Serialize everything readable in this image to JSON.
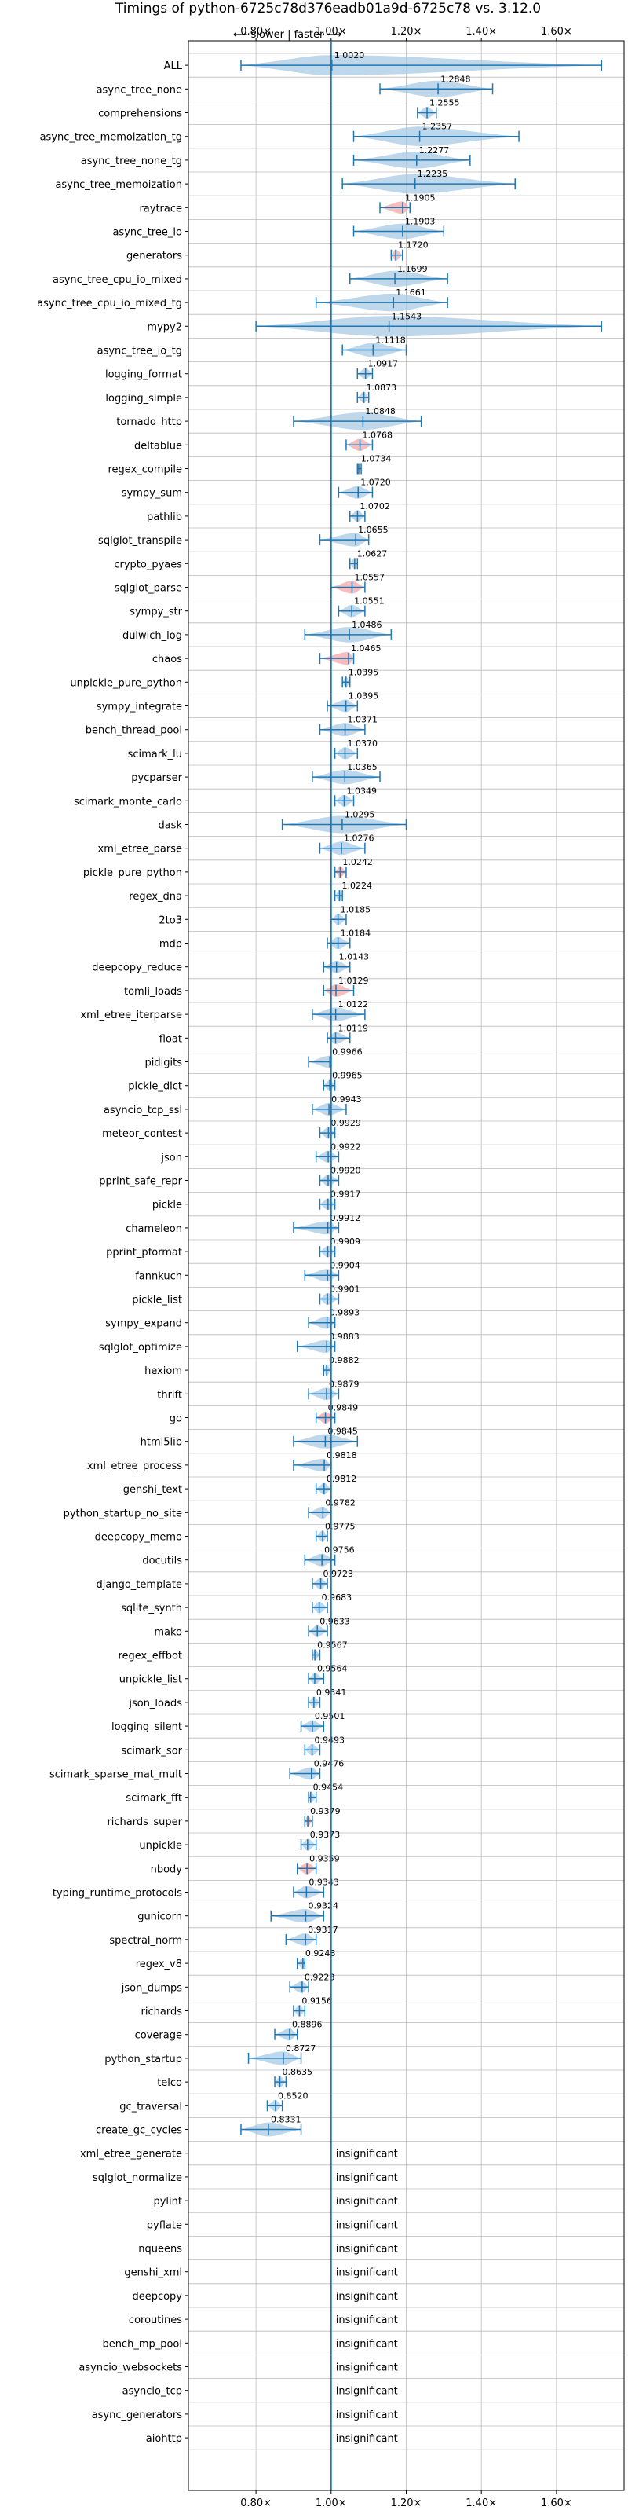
{
  "chart_data": {
    "type": "violin",
    "title": "Timings of python-6725c78d376eadb01a9d-6725c78 vs. 3.12.0",
    "xlabel": "",
    "ylabel": "",
    "direction_label": "⟵ slower  |  faster ⟶",
    "x_ticks": [
      "0.80×",
      "1.00×",
      "1.20×",
      "1.40×",
      "1.60×"
    ],
    "x_tick_values": [
      0.8,
      1.0,
      1.2,
      1.4,
      1.6
    ],
    "xlim": [
      0.62,
      1.78
    ],
    "grid": true,
    "colors": {
      "faster": "#a9c9e4",
      "slower": "#f4a7a7",
      "line": "#1f77b4",
      "grid": "#bbbbbb"
    },
    "insignificant_label": "insignificant",
    "benchmarks": [
      {
        "name": "ALL",
        "value": 1.002,
        "label": "1.0020",
        "lo": 0.76,
        "hi": 1.72,
        "slower": false,
        "sig": true
      },
      {
        "name": "async_tree_none",
        "value": 1.2848,
        "label": "1.2848",
        "lo": 1.13,
        "hi": 1.43,
        "slower": false,
        "sig": true
      },
      {
        "name": "comprehensions",
        "value": 1.2555,
        "label": "1.2555",
        "lo": 1.23,
        "hi": 1.28,
        "slower": false,
        "sig": true
      },
      {
        "name": "async_tree_memoization_tg",
        "value": 1.2357,
        "label": "1.2357",
        "lo": 1.06,
        "hi": 1.5,
        "slower": false,
        "sig": true
      },
      {
        "name": "async_tree_none_tg",
        "value": 1.2277,
        "label": "1.2277",
        "lo": 1.06,
        "hi": 1.37,
        "slower": false,
        "sig": true
      },
      {
        "name": "async_tree_memoization",
        "value": 1.2235,
        "label": "1.2235",
        "lo": 1.03,
        "hi": 1.49,
        "slower": false,
        "sig": true
      },
      {
        "name": "raytrace",
        "value": 1.1905,
        "label": "1.1905",
        "lo": 1.13,
        "hi": 1.21,
        "slower": true,
        "sig": true
      },
      {
        "name": "async_tree_io",
        "value": 1.1903,
        "label": "1.1903",
        "lo": 1.06,
        "hi": 1.3,
        "slower": false,
        "sig": true
      },
      {
        "name": "generators",
        "value": 1.172,
        "label": "1.1720",
        "lo": 1.16,
        "hi": 1.19,
        "slower": true,
        "sig": true
      },
      {
        "name": "async_tree_cpu_io_mixed",
        "value": 1.1699,
        "label": "1.1699",
        "lo": 1.05,
        "hi": 1.31,
        "slower": false,
        "sig": true
      },
      {
        "name": "async_tree_cpu_io_mixed_tg",
        "value": 1.1661,
        "label": "1.1661",
        "lo": 0.96,
        "hi": 1.31,
        "slower": false,
        "sig": true
      },
      {
        "name": "mypy2",
        "value": 1.1543,
        "label": "1.1543",
        "lo": 0.8,
        "hi": 1.72,
        "slower": false,
        "sig": true
      },
      {
        "name": "async_tree_io_tg",
        "value": 1.1118,
        "label": "1.1118",
        "lo": 1.03,
        "hi": 1.2,
        "slower": false,
        "sig": true
      },
      {
        "name": "logging_format",
        "value": 1.0917,
        "label": "1.0917",
        "lo": 1.07,
        "hi": 1.11,
        "slower": false,
        "sig": true
      },
      {
        "name": "logging_simple",
        "value": 1.0873,
        "label": "1.0873",
        "lo": 1.07,
        "hi": 1.1,
        "slower": false,
        "sig": true
      },
      {
        "name": "tornado_http",
        "value": 1.0848,
        "label": "1.0848",
        "lo": 0.9,
        "hi": 1.24,
        "slower": false,
        "sig": true
      },
      {
        "name": "deltablue",
        "value": 1.0768,
        "label": "1.0768",
        "lo": 1.04,
        "hi": 1.11,
        "slower": true,
        "sig": true
      },
      {
        "name": "regex_compile",
        "value": 1.0734,
        "label": "1.0734",
        "lo": 1.07,
        "hi": 1.08,
        "slower": false,
        "sig": true
      },
      {
        "name": "sympy_sum",
        "value": 1.072,
        "label": "1.0720",
        "lo": 1.02,
        "hi": 1.11,
        "slower": false,
        "sig": true
      },
      {
        "name": "pathlib",
        "value": 1.0702,
        "label": "1.0702",
        "lo": 1.05,
        "hi": 1.09,
        "slower": false,
        "sig": true
      },
      {
        "name": "sqlglot_transpile",
        "value": 1.0655,
        "label": "1.0655",
        "lo": 0.97,
        "hi": 1.1,
        "slower": false,
        "sig": true
      },
      {
        "name": "crypto_pyaes",
        "value": 1.0627,
        "label": "1.0627",
        "lo": 1.05,
        "hi": 1.07,
        "slower": false,
        "sig": true
      },
      {
        "name": "sqlglot_parse",
        "value": 1.0557,
        "label": "1.0557",
        "lo": 1.0,
        "hi": 1.09,
        "slower": true,
        "sig": true
      },
      {
        "name": "sympy_str",
        "value": 1.0551,
        "label": "1.0551",
        "lo": 1.02,
        "hi": 1.09,
        "slower": false,
        "sig": true
      },
      {
        "name": "dulwich_log",
        "value": 1.0486,
        "label": "1.0486",
        "lo": 0.93,
        "hi": 1.16,
        "slower": false,
        "sig": true
      },
      {
        "name": "chaos",
        "value": 1.0465,
        "label": "1.0465",
        "lo": 0.97,
        "hi": 1.06,
        "slower": true,
        "sig": true
      },
      {
        "name": "unpickle_pure_python",
        "value": 1.0395,
        "label": "1.0395",
        "lo": 1.03,
        "hi": 1.05,
        "slower": false,
        "sig": true
      },
      {
        "name": "sympy_integrate",
        "value": 1.0395,
        "label": "1.0395",
        "lo": 0.99,
        "hi": 1.07,
        "slower": false,
        "sig": true
      },
      {
        "name": "bench_thread_pool",
        "value": 1.0371,
        "label": "1.0371",
        "lo": 0.97,
        "hi": 1.09,
        "slower": false,
        "sig": true
      },
      {
        "name": "scimark_lu",
        "value": 1.037,
        "label": "1.0370",
        "lo": 1.01,
        "hi": 1.07,
        "slower": false,
        "sig": true
      },
      {
        "name": "pycparser",
        "value": 1.0365,
        "label": "1.0365",
        "lo": 0.95,
        "hi": 1.13,
        "slower": false,
        "sig": true
      },
      {
        "name": "scimark_monte_carlo",
        "value": 1.0349,
        "label": "1.0349",
        "lo": 1.01,
        "hi": 1.06,
        "slower": false,
        "sig": true
      },
      {
        "name": "dask",
        "value": 1.0295,
        "label": "1.0295",
        "lo": 0.87,
        "hi": 1.2,
        "slower": false,
        "sig": true
      },
      {
        "name": "xml_etree_parse",
        "value": 1.0276,
        "label": "1.0276",
        "lo": 0.97,
        "hi": 1.09,
        "slower": false,
        "sig": true
      },
      {
        "name": "pickle_pure_python",
        "value": 1.0242,
        "label": "1.0242",
        "lo": 1.01,
        "hi": 1.04,
        "slower": true,
        "sig": true
      },
      {
        "name": "regex_dna",
        "value": 1.0224,
        "label": "1.0224",
        "lo": 1.01,
        "hi": 1.03,
        "slower": false,
        "sig": true
      },
      {
        "name": "2to3",
        "value": 1.0185,
        "label": "1.0185",
        "lo": 1.0,
        "hi": 1.04,
        "slower": false,
        "sig": true
      },
      {
        "name": "mdp",
        "value": 1.0184,
        "label": "1.0184",
        "lo": 0.99,
        "hi": 1.05,
        "slower": false,
        "sig": true
      },
      {
        "name": "deepcopy_reduce",
        "value": 1.0143,
        "label": "1.0143",
        "lo": 0.98,
        "hi": 1.05,
        "slower": false,
        "sig": true
      },
      {
        "name": "tomli_loads",
        "value": 1.0129,
        "label": "1.0129",
        "lo": 0.98,
        "hi": 1.06,
        "slower": true,
        "sig": true
      },
      {
        "name": "xml_etree_iterparse",
        "value": 1.0122,
        "label": "1.0122",
        "lo": 0.95,
        "hi": 1.09,
        "slower": false,
        "sig": true
      },
      {
        "name": "float",
        "value": 1.0119,
        "label": "1.0119",
        "lo": 0.99,
        "hi": 1.05,
        "slower": false,
        "sig": true
      },
      {
        "name": "pidigits",
        "value": 0.9966,
        "label": "0.9966",
        "lo": 0.94,
        "hi": 1.0,
        "slower": false,
        "sig": true
      },
      {
        "name": "pickle_dict",
        "value": 0.9965,
        "label": "0.9965",
        "lo": 0.98,
        "hi": 1.01,
        "slower": false,
        "sig": true
      },
      {
        "name": "asyncio_tcp_ssl",
        "value": 0.9943,
        "label": "0.9943",
        "lo": 0.95,
        "hi": 1.04,
        "slower": false,
        "sig": true
      },
      {
        "name": "meteor_contest",
        "value": 0.9929,
        "label": "0.9929",
        "lo": 0.97,
        "hi": 1.01,
        "slower": false,
        "sig": true
      },
      {
        "name": "json",
        "value": 0.9922,
        "label": "0.9922",
        "lo": 0.96,
        "hi": 1.02,
        "slower": false,
        "sig": true
      },
      {
        "name": "pprint_safe_repr",
        "value": 0.992,
        "label": "0.9920",
        "lo": 0.97,
        "hi": 1.02,
        "slower": false,
        "sig": true
      },
      {
        "name": "pickle",
        "value": 0.9917,
        "label": "0.9917",
        "lo": 0.97,
        "hi": 1.01,
        "slower": false,
        "sig": true
      },
      {
        "name": "chameleon",
        "value": 0.9912,
        "label": "0.9912",
        "lo": 0.9,
        "hi": 1.02,
        "slower": false,
        "sig": true
      },
      {
        "name": "pprint_pformat",
        "value": 0.9909,
        "label": "0.9909",
        "lo": 0.97,
        "hi": 1.01,
        "slower": false,
        "sig": true
      },
      {
        "name": "fannkuch",
        "value": 0.9904,
        "label": "0.9904",
        "lo": 0.93,
        "hi": 1.02,
        "slower": false,
        "sig": true
      },
      {
        "name": "pickle_list",
        "value": 0.9901,
        "label": "0.9901",
        "lo": 0.97,
        "hi": 1.02,
        "slower": false,
        "sig": true
      },
      {
        "name": "sympy_expand",
        "value": 0.9893,
        "label": "0.9893",
        "lo": 0.94,
        "hi": 1.01,
        "slower": false,
        "sig": true
      },
      {
        "name": "sqlglot_optimize",
        "value": 0.9883,
        "label": "0.9883",
        "lo": 0.91,
        "hi": 1.01,
        "slower": false,
        "sig": true
      },
      {
        "name": "hexiom",
        "value": 0.9882,
        "label": "0.9882",
        "lo": 0.98,
        "hi": 1.0,
        "slower": false,
        "sig": true
      },
      {
        "name": "thrift",
        "value": 0.9879,
        "label": "0.9879",
        "lo": 0.94,
        "hi": 1.02,
        "slower": false,
        "sig": true
      },
      {
        "name": "go",
        "value": 0.9849,
        "label": "0.9849",
        "lo": 0.96,
        "hi": 1.01,
        "slower": true,
        "sig": true
      },
      {
        "name": "html5lib",
        "value": 0.9845,
        "label": "0.9845",
        "lo": 0.9,
        "hi": 1.07,
        "slower": false,
        "sig": true
      },
      {
        "name": "xml_etree_process",
        "value": 0.9818,
        "label": "0.9818",
        "lo": 0.9,
        "hi": 1.0,
        "slower": false,
        "sig": true
      },
      {
        "name": "genshi_text",
        "value": 0.9812,
        "label": "0.9812",
        "lo": 0.96,
        "hi": 1.0,
        "slower": false,
        "sig": true
      },
      {
        "name": "python_startup_no_site",
        "value": 0.9782,
        "label": "0.9782",
        "lo": 0.94,
        "hi": 1.0,
        "slower": false,
        "sig": true
      },
      {
        "name": "deepcopy_memo",
        "value": 0.9775,
        "label": "0.9775",
        "lo": 0.96,
        "hi": 0.99,
        "slower": false,
        "sig": true
      },
      {
        "name": "docutils",
        "value": 0.9756,
        "label": "0.9756",
        "lo": 0.93,
        "hi": 1.01,
        "slower": false,
        "sig": true
      },
      {
        "name": "django_template",
        "value": 0.9723,
        "label": "0.9723",
        "lo": 0.95,
        "hi": 0.99,
        "slower": false,
        "sig": true
      },
      {
        "name": "sqlite_synth",
        "value": 0.9683,
        "label": "0.9683",
        "lo": 0.95,
        "hi": 0.99,
        "slower": false,
        "sig": true
      },
      {
        "name": "mako",
        "value": 0.9633,
        "label": "0.9633",
        "lo": 0.94,
        "hi": 0.99,
        "slower": false,
        "sig": true
      },
      {
        "name": "regex_effbot",
        "value": 0.9567,
        "label": "0.9567",
        "lo": 0.95,
        "hi": 0.97,
        "slower": false,
        "sig": true
      },
      {
        "name": "unpickle_list",
        "value": 0.9564,
        "label": "0.9564",
        "lo": 0.94,
        "hi": 0.98,
        "slower": false,
        "sig": true
      },
      {
        "name": "json_loads",
        "value": 0.9541,
        "label": "0.9541",
        "lo": 0.94,
        "hi": 0.97,
        "slower": false,
        "sig": true
      },
      {
        "name": "logging_silent",
        "value": 0.9501,
        "label": "0.9501",
        "lo": 0.92,
        "hi": 0.98,
        "slower": false,
        "sig": true
      },
      {
        "name": "scimark_sor",
        "value": 0.9493,
        "label": "0.9493",
        "lo": 0.93,
        "hi": 0.97,
        "slower": false,
        "sig": true
      },
      {
        "name": "scimark_sparse_mat_mult",
        "value": 0.9476,
        "label": "0.9476",
        "lo": 0.89,
        "hi": 0.97,
        "slower": false,
        "sig": true
      },
      {
        "name": "scimark_fft",
        "value": 0.9454,
        "label": "0.9454",
        "lo": 0.94,
        "hi": 0.96,
        "slower": false,
        "sig": true
      },
      {
        "name": "richards_super",
        "value": 0.9379,
        "label": "0.9379",
        "lo": 0.93,
        "hi": 0.95,
        "slower": true,
        "sig": true
      },
      {
        "name": "unpickle",
        "value": 0.9373,
        "label": "0.9373",
        "lo": 0.92,
        "hi": 0.96,
        "slower": false,
        "sig": true
      },
      {
        "name": "nbody",
        "value": 0.9359,
        "label": "0.9359",
        "lo": 0.91,
        "hi": 0.96,
        "slower": true,
        "sig": true
      },
      {
        "name": "typing_runtime_protocols",
        "value": 0.9343,
        "label": "0.9343",
        "lo": 0.9,
        "hi": 0.98,
        "slower": false,
        "sig": true
      },
      {
        "name": "gunicorn",
        "value": 0.9324,
        "label": "0.9324",
        "lo": 0.84,
        "hi": 0.98,
        "slower": false,
        "sig": true
      },
      {
        "name": "spectral_norm",
        "value": 0.9317,
        "label": "0.9317",
        "lo": 0.88,
        "hi": 0.96,
        "slower": false,
        "sig": true
      },
      {
        "name": "regex_v8",
        "value": 0.9248,
        "label": "0.9248",
        "lo": 0.91,
        "hi": 0.93,
        "slower": false,
        "sig": true
      },
      {
        "name": "json_dumps",
        "value": 0.9228,
        "label": "0.9228",
        "lo": 0.89,
        "hi": 0.94,
        "slower": false,
        "sig": true
      },
      {
        "name": "richards",
        "value": 0.9156,
        "label": "0.9156",
        "lo": 0.9,
        "hi": 0.93,
        "slower": false,
        "sig": true
      },
      {
        "name": "coverage",
        "value": 0.8896,
        "label": "0.8896",
        "lo": 0.85,
        "hi": 0.91,
        "slower": false,
        "sig": true
      },
      {
        "name": "python_startup",
        "value": 0.8727,
        "label": "0.8727",
        "lo": 0.78,
        "hi": 0.92,
        "slower": false,
        "sig": true
      },
      {
        "name": "telco",
        "value": 0.8635,
        "label": "0.8635",
        "lo": 0.85,
        "hi": 0.88,
        "slower": false,
        "sig": true
      },
      {
        "name": "gc_traversal",
        "value": 0.852,
        "label": "0.8520",
        "lo": 0.83,
        "hi": 0.87,
        "slower": false,
        "sig": true
      },
      {
        "name": "create_gc_cycles",
        "value": 0.8331,
        "label": "0.8331",
        "lo": 0.76,
        "hi": 0.92,
        "slower": false,
        "sig": true
      },
      {
        "name": "xml_etree_generate",
        "sig": false
      },
      {
        "name": "sqlglot_normalize",
        "sig": false
      },
      {
        "name": "pylint",
        "sig": false
      },
      {
        "name": "pyflate",
        "sig": false
      },
      {
        "name": "nqueens",
        "sig": false
      },
      {
        "name": "genshi_xml",
        "sig": false
      },
      {
        "name": "deepcopy",
        "sig": false
      },
      {
        "name": "coroutines",
        "sig": false
      },
      {
        "name": "bench_mp_pool",
        "sig": false
      },
      {
        "name": "asyncio_websockets",
        "sig": false
      },
      {
        "name": "asyncio_tcp",
        "sig": false
      },
      {
        "name": "async_generators",
        "sig": false
      },
      {
        "name": "aiohttp",
        "sig": false
      }
    ]
  }
}
